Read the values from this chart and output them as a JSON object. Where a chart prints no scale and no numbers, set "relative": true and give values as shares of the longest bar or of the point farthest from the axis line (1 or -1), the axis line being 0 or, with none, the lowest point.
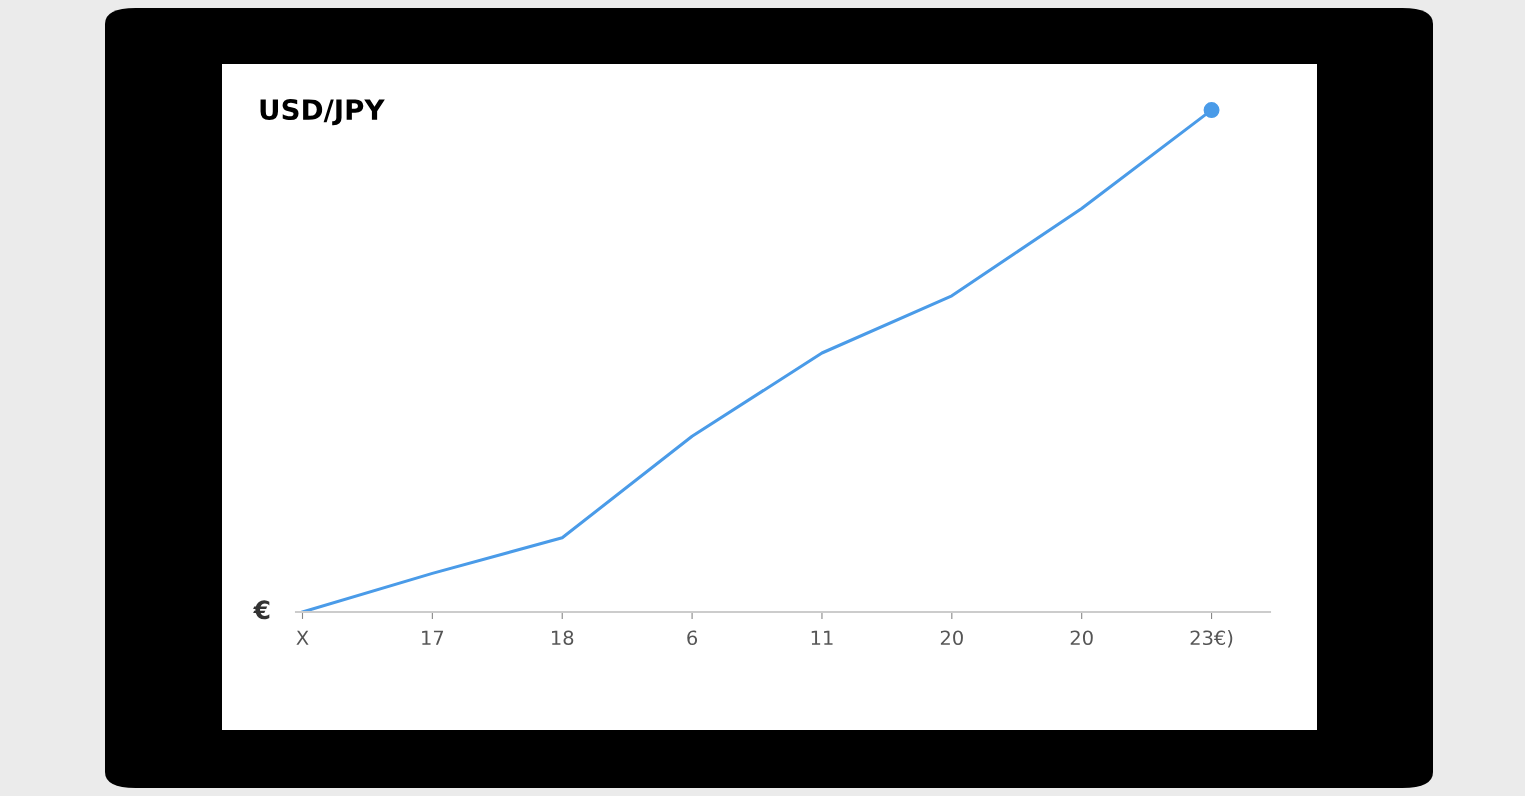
{
  "chart_data": {
    "type": "line",
    "title": "USD/JPY",
    "relative": true,
    "categories": [
      "X",
      "17",
      "18",
      "6",
      "11",
      "20",
      "20",
      "23€)"
    ],
    "series": [
      {
        "color": "#4a9be8",
        "marker": "none",
        "values": [
          0,
          0.077,
          0.148,
          0.35,
          0.516,
          0.63,
          0.804,
          1
        ]
      },
      {
        "type": "scatter",
        "color": "#4a9be8",
        "marker": "circle",
        "x": [
          "23€)"
        ],
        "values": [
          1
        ]
      }
    ],
    "annotations": [
      "€"
    ],
    "tick_labels": "x"
  }
}
